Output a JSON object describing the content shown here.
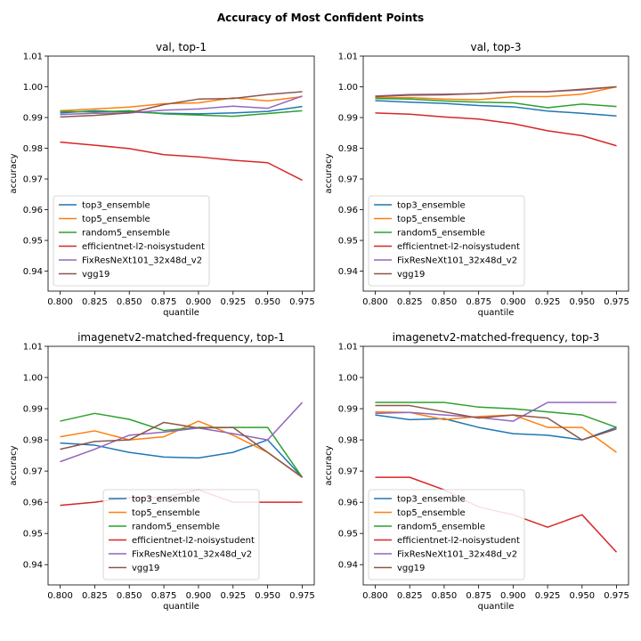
{
  "suptitle": "Accuracy of Most Confident Points",
  "series_colors": {
    "top3_ensemble": "#1f77b4",
    "top5_ensemble": "#ff7f0e",
    "random5_ensemble": "#2ca02c",
    "efficientnet-l2-noisystudent": "#d62728",
    "FixResNeXt101_32x48d_v2": "#9467bd",
    "vgg19": "#8c564b"
  },
  "chart_data": [
    {
      "type": "line",
      "title": "val, top-1",
      "xlabel": "quantile",
      "ylabel": "accuracy",
      "x": [
        0.8,
        0.825,
        0.85,
        0.875,
        0.9,
        0.925,
        0.95,
        0.975
      ],
      "xticks": [
        "0.800",
        "0.825",
        "0.850",
        "0.875",
        "0.900",
        "0.925",
        "0.950",
        "0.975"
      ],
      "yticks": [
        "0.94",
        "0.95",
        "0.96",
        "0.97",
        "0.98",
        "0.99",
        "1.00",
        "1.01"
      ],
      "xlim": [
        0.7913,
        0.9837
      ],
      "ylim": [
        0.9335,
        1.01
      ],
      "legend_position": "lower-left",
      "series": [
        {
          "name": "top3_ensemble",
          "values": [
            0.9915,
            0.9922,
            0.9918,
            0.9914,
            0.9912,
            0.9915,
            0.992,
            0.9936
          ]
        },
        {
          "name": "top5_ensemble",
          "values": [
            0.9922,
            0.9928,
            0.9934,
            0.9945,
            0.9948,
            0.9964,
            0.9954,
            0.9968
          ]
        },
        {
          "name": "random5_ensemble",
          "values": [
            0.992,
            0.9918,
            0.9922,
            0.9912,
            0.9908,
            0.9904,
            0.9913,
            0.9922
          ]
        },
        {
          "name": "efficientnet-l2-noisystudent",
          "values": [
            0.982,
            0.981,
            0.9799,
            0.9779,
            0.9772,
            0.9761,
            0.9753,
            0.9696
          ]
        },
        {
          "name": "FixResNeXt101_32x48d_v2",
          "values": [
            0.991,
            0.9914,
            0.9915,
            0.9924,
            0.9928,
            0.9937,
            0.993,
            0.997
          ]
        },
        {
          "name": "vgg19",
          "values": [
            0.9902,
            0.9907,
            0.9915,
            0.9942,
            0.996,
            0.9962,
            0.9975,
            0.9984
          ]
        }
      ]
    },
    {
      "type": "line",
      "title": "val, top-3",
      "xlabel": "quantile",
      "ylabel": "accuracy",
      "x": [
        0.8,
        0.825,
        0.85,
        0.875,
        0.9,
        0.925,
        0.95,
        0.975
      ],
      "xticks": [
        "0.800",
        "0.825",
        "0.850",
        "0.875",
        "0.900",
        "0.925",
        "0.950",
        "0.975"
      ],
      "yticks": [
        "0.94",
        "0.95",
        "0.96",
        "0.97",
        "0.98",
        "0.99",
        "1.00",
        "1.01"
      ],
      "xlim": [
        0.7913,
        0.9837
      ],
      "ylim": [
        0.9335,
        1.01
      ],
      "legend_position": "lower-left",
      "series": [
        {
          "name": "top3_ensemble",
          "values": [
            0.9955,
            0.995,
            0.9946,
            0.9939,
            0.9935,
            0.9921,
            0.9914,
            0.9905
          ]
        },
        {
          "name": "top5_ensemble",
          "values": [
            0.9965,
            0.9965,
            0.996,
            0.9958,
            0.9968,
            0.9968,
            0.9976,
            1.0
          ]
        },
        {
          "name": "random5_ensemble",
          "values": [
            0.9962,
            0.996,
            0.9954,
            0.995,
            0.9948,
            0.9932,
            0.9944,
            0.9936
          ]
        },
        {
          "name": "efficientnet-l2-noisystudent",
          "values": [
            0.9915,
            0.9911,
            0.9902,
            0.9895,
            0.988,
            0.9857,
            0.9841,
            0.9808
          ]
        },
        {
          "name": "FixResNeXt101_32x48d_v2",
          "values": [
            0.997,
            0.9975,
            0.9976,
            0.9978,
            0.9983,
            0.9984,
            0.999,
            1.0
          ]
        },
        {
          "name": "vgg19",
          "values": [
            0.9968,
            0.9973,
            0.9974,
            0.9978,
            0.9984,
            0.9984,
            0.9992,
            1.0
          ]
        }
      ]
    },
    {
      "type": "line",
      "title": "imagenetv2-matched-frequency, top-1",
      "xlabel": "quantile",
      "ylabel": "accuracy",
      "x": [
        0.8,
        0.825,
        0.85,
        0.875,
        0.9,
        0.925,
        0.95,
        0.975
      ],
      "xticks": [
        "0.800",
        "0.825",
        "0.850",
        "0.875",
        "0.900",
        "0.925",
        "0.950",
        "0.975"
      ],
      "yticks": [
        "0.94",
        "0.95",
        "0.96",
        "0.97",
        "0.98",
        "0.99",
        "1.00",
        "1.01"
      ],
      "xlim": [
        0.7913,
        0.9837
      ],
      "ylim": [
        0.9335,
        1.01
      ],
      "legend_position": "lower-center",
      "series": [
        {
          "name": "top3_ensemble",
          "values": [
            0.979,
            0.9783,
            0.976,
            0.9745,
            0.9742,
            0.976,
            0.98,
            0.968
          ]
        },
        {
          "name": "top5_ensemble",
          "values": [
            0.981,
            0.9829,
            0.98,
            0.981,
            0.986,
            0.9815,
            0.976,
            0.968
          ]
        },
        {
          "name": "random5_ensemble",
          "values": [
            0.986,
            0.9885,
            0.9866,
            0.983,
            0.984,
            0.984,
            0.984,
            0.968
          ]
        },
        {
          "name": "efficientnet-l2-noisystudent",
          "values": [
            0.959,
            0.96,
            0.9615,
            0.9615,
            0.964,
            0.96,
            0.96,
            0.96
          ]
        },
        {
          "name": "FixResNeXt101_32x48d_v2",
          "values": [
            0.973,
            0.977,
            0.9815,
            0.9825,
            0.9838,
            0.982,
            0.98,
            0.992
          ]
        },
        {
          "name": "vgg19",
          "values": [
            0.977,
            0.9795,
            0.98,
            0.9856,
            0.9838,
            0.984,
            0.976,
            0.968
          ]
        }
      ]
    },
    {
      "type": "line",
      "title": "imagenetv2-matched-frequency, top-3",
      "xlabel": "quantile",
      "ylabel": "accuracy",
      "x": [
        0.8,
        0.825,
        0.85,
        0.875,
        0.9,
        0.925,
        0.95,
        0.975
      ],
      "xticks": [
        "0.800",
        "0.825",
        "0.850",
        "0.875",
        "0.900",
        "0.925",
        "0.950",
        "0.975"
      ],
      "yticks": [
        "0.94",
        "0.95",
        "0.96",
        "0.97",
        "0.98",
        "0.99",
        "1.00",
        "1.01"
      ],
      "xlim": [
        0.7913,
        0.9837
      ],
      "ylim": [
        0.9335,
        1.01
      ],
      "legend_position": "lower-left",
      "series": [
        {
          "name": "top3_ensemble",
          "values": [
            0.988,
            0.9865,
            0.9868,
            0.984,
            0.982,
            0.9815,
            0.98,
            0.984
          ]
        },
        {
          "name": "top5_ensemble",
          "values": [
            0.989,
            0.9888,
            0.9865,
            0.9875,
            0.988,
            0.984,
            0.984,
            0.976
          ]
        },
        {
          "name": "random5_ensemble",
          "values": [
            0.992,
            0.992,
            0.992,
            0.9905,
            0.99,
            0.989,
            0.988,
            0.984
          ]
        },
        {
          "name": "efficientnet-l2-noisystudent",
          "values": [
            0.968,
            0.968,
            0.964,
            0.9585,
            0.956,
            0.952,
            0.956,
            0.944
          ]
        },
        {
          "name": "FixResNeXt101_32x48d_v2",
          "values": [
            0.9885,
            0.9888,
            0.988,
            0.9872,
            0.986,
            0.992,
            0.992,
            0.992
          ]
        },
        {
          "name": "vgg19",
          "values": [
            0.991,
            0.991,
            0.989,
            0.987,
            0.988,
            0.987,
            0.98,
            0.9835
          ]
        }
      ]
    }
  ]
}
